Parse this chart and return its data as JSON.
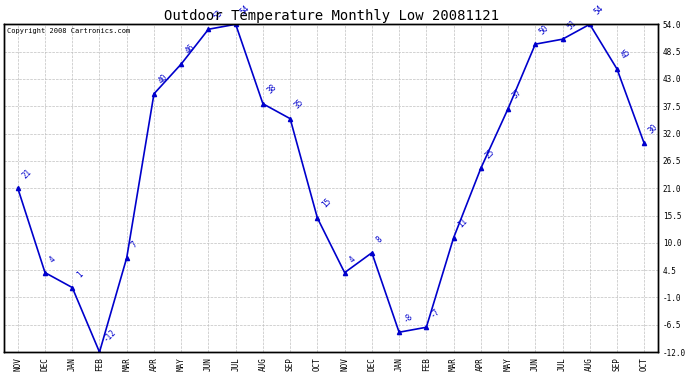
{
  "title": "Outdoor Temperature Monthly Low 20081121",
  "copyright": "Copyright 2008 Cartronics.com",
  "categories": [
    "NOV",
    "DEC",
    "JAN",
    "FEB",
    "MAR",
    "APR",
    "MAY",
    "JUN",
    "JUL",
    "AUG",
    "SEP",
    "OCT",
    "NOV",
    "DEC",
    "JAN",
    "FEB",
    "MAR",
    "APR",
    "MAY",
    "JUN",
    "JUL",
    "AUG",
    "SEP",
    "OCT"
  ],
  "values": [
    21,
    4,
    1,
    -12,
    7,
    40,
    46,
    53,
    54,
    38,
    35,
    15,
    4,
    8,
    -8,
    -7,
    11,
    25,
    37,
    50,
    51,
    54,
    45,
    30
  ],
  "line_color": "#0000cc",
  "marker_color": "#0000cc",
  "bg_color": "#ffffff",
  "grid_color": "#c0c0c0",
  "ylim_min": -12.0,
  "ylim_max": 54.0,
  "ytick_values": [
    54.0,
    48.5,
    43.0,
    37.5,
    32.0,
    26.5,
    21.0,
    15.5,
    10.0,
    4.5,
    -1.0,
    -6.5,
    -12.0
  ],
  "title_fontsize": 10,
  "label_fontsize": 5.5,
  "axis_fontsize": 5.5,
  "copyright_fontsize": 5
}
